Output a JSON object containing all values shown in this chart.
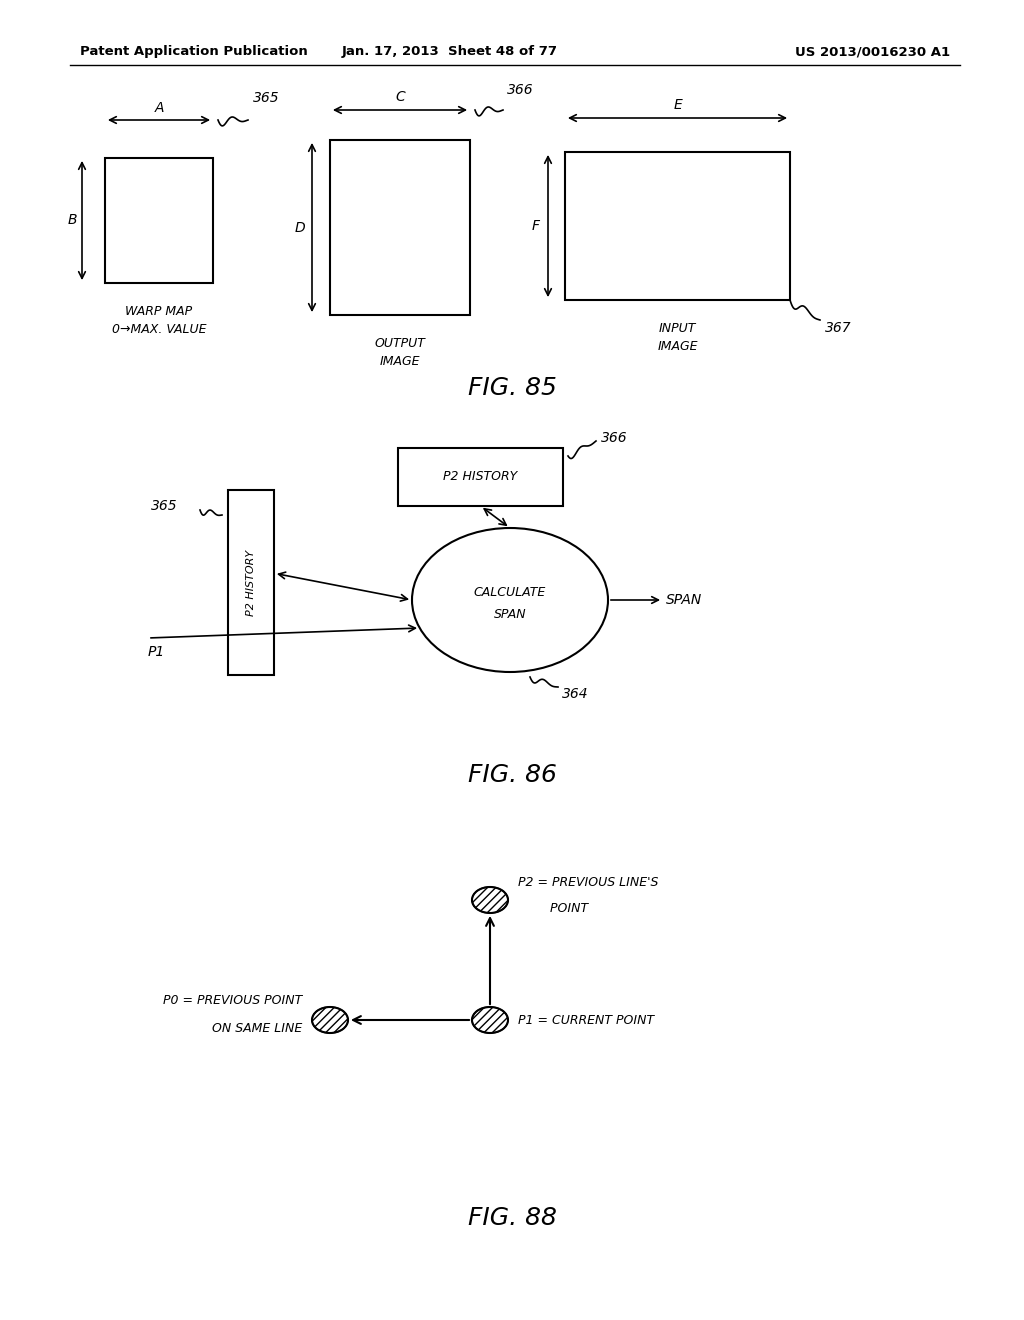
{
  "bg_color": "#ffffff",
  "header_left": "Patent Application Publication",
  "header_mid": "Jan. 17, 2013  Sheet 48 of 77",
  "header_right": "US 2013/0016230 A1",
  "fig85_title": "FIG. 85",
  "fig86_title": "FIG. 86",
  "fig88_title": "FIG. 88"
}
